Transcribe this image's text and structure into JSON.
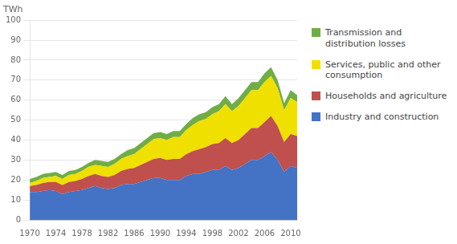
{
  "chart_data": {
    "type": "area",
    "stacked": true,
    "ylabel": "TWh",
    "x": [
      1970,
      1971,
      1972,
      1973,
      1974,
      1975,
      1976,
      1977,
      1978,
      1979,
      1980,
      1981,
      1982,
      1983,
      1984,
      1985,
      1986,
      1987,
      1988,
      1989,
      1990,
      1991,
      1992,
      1993,
      1994,
      1995,
      1996,
      1997,
      1998,
      1999,
      2000,
      2001,
      2002,
      2003,
      2004,
      2005,
      2006,
      2007,
      2008,
      2009,
      2010,
      2011
    ],
    "xlim": [
      1970,
      2011
    ],
    "xticks": [
      1970,
      1974,
      1978,
      1982,
      1986,
      1990,
      1994,
      1998,
      2002,
      2006,
      2010
    ],
    "ylim": [
      0,
      100
    ],
    "yticks": [
      0,
      10,
      20,
      30,
      40,
      50,
      60,
      70,
      80,
      90,
      100
    ],
    "grid": "y",
    "legend": "right",
    "series": [
      {
        "name": "Industry and construction",
        "color": "#4472c4",
        "values": [
          14,
          14,
          14.5,
          15,
          14.5,
          13,
          14,
          14.5,
          15,
          16,
          17,
          16,
          15.5,
          16,
          17.5,
          18,
          18,
          19,
          20,
          21,
          21,
          20,
          20,
          20,
          22,
          23,
          23,
          24,
          25,
          25,
          27,
          25,
          26,
          28,
          30,
          30,
          32,
          34,
          30,
          24,
          27,
          26
        ]
      },
      {
        "name": "Households and agriculture",
        "color": "#c0504d",
        "values": [
          3,
          3.5,
          4,
          4,
          4.5,
          4.5,
          5,
          5,
          5.5,
          6,
          6,
          6,
          6,
          6.5,
          7,
          7.5,
          8,
          8.5,
          9,
          9.5,
          10,
          10,
          10.5,
          10.5,
          11,
          11.5,
          12.5,
          12.5,
          13,
          13.5,
          14,
          13.5,
          14,
          15,
          16,
          16,
          17,
          18,
          17,
          15,
          16,
          16
        ]
      },
      {
        "name": "Services, public and other\nconsumption",
        "color": "#f0e000",
        "values": [
          1.5,
          2,
          2.5,
          2.5,
          3,
          3,
          3.5,
          3.5,
          4,
          4.5,
          4.5,
          5,
          5,
          5.5,
          6,
          6.5,
          7,
          8,
          9,
          10,
          10,
          10,
          11,
          11,
          12,
          13,
          14,
          14,
          15,
          16,
          17,
          16,
          17,
          18,
          19,
          19,
          20,
          20,
          19,
          16,
          18,
          17
        ]
      },
      {
        "name": "Transmission and\ndistribution losses",
        "color": "#70ad47",
        "values": [
          2,
          2,
          2,
          2,
          2,
          2,
          2,
          2,
          2,
          2,
          2.5,
          2.5,
          2.5,
          2.5,
          2.5,
          3,
          3,
          3,
          3,
          3,
          3,
          3,
          3,
          3,
          3,
          3.5,
          3.5,
          3.5,
          3.5,
          3.5,
          4,
          3.5,
          4,
          4,
          4,
          4,
          4.5,
          4.5,
          4,
          3.5,
          4,
          3.5
        ]
      }
    ]
  }
}
